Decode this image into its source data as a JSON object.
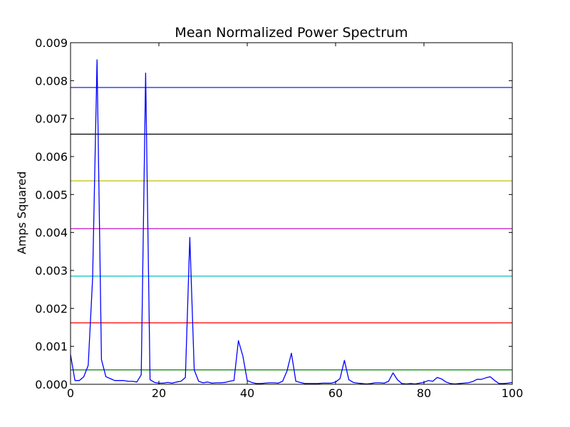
{
  "chart_data": {
    "type": "line",
    "title": "Mean Normalized Power Spectrum",
    "xlabel": "",
    "ylabel": "Amps Squared",
    "xlim": [
      0,
      100
    ],
    "ylim": [
      0,
      0.009
    ],
    "x_ticks": [
      0,
      20,
      40,
      60,
      80,
      100
    ],
    "x_tick_labels": [
      "0",
      "20",
      "40",
      "60",
      "80",
      "100"
    ],
    "y_ticks": [
      0,
      0.001,
      0.002,
      0.003,
      0.004,
      0.005,
      0.006,
      0.007,
      0.008,
      0.009
    ],
    "y_tick_labels": [
      "0.000",
      "0.001",
      "0.002",
      "0.003",
      "0.004",
      "0.005",
      "0.006",
      "0.007",
      "0.008",
      "0.009"
    ],
    "grid": false,
    "series": [
      {
        "color": "#0000ff",
        "x": [
          0,
          1,
          2,
          3,
          4,
          5,
          6,
          7,
          8,
          9,
          10,
          11,
          12,
          13,
          14,
          15,
          16,
          17,
          18,
          19,
          20,
          21,
          22,
          23,
          24,
          25,
          26,
          27,
          28,
          29,
          30,
          31,
          32,
          33,
          34,
          35,
          36,
          37,
          38,
          39,
          40,
          41,
          42,
          43,
          44,
          45,
          46,
          47,
          48,
          49,
          50,
          51,
          52,
          53,
          54,
          55,
          56,
          57,
          58,
          59,
          60,
          61,
          62,
          63,
          64,
          65,
          66,
          67,
          68,
          69,
          70,
          71,
          72,
          73,
          74,
          75,
          76,
          77,
          78,
          79,
          80,
          81,
          82,
          83,
          84,
          85,
          86,
          87,
          88,
          89,
          90,
          91,
          92,
          93,
          94,
          95,
          96,
          97,
          98,
          99,
          100
        ],
        "y": [
          0.00078,
          0.0001,
          0.0001,
          0.0002,
          0.0005,
          0.0028,
          0.00855,
          0.00065,
          0.0002,
          0.00015,
          0.0001,
          0.0001,
          0.0001,
          8e-05,
          8e-05,
          6e-05,
          0.00025,
          0.0082,
          0.00012,
          5e-05,
          3e-05,
          3e-05,
          5e-05,
          3e-05,
          6e-05,
          8e-05,
          0.00018,
          0.00387,
          0.00038,
          8e-05,
          4e-05,
          6e-05,
          3e-05,
          4e-05,
          4e-05,
          5e-05,
          8e-05,
          0.0001,
          0.00115,
          0.00075,
          0.0001,
          5e-05,
          2e-05,
          2e-05,
          3e-05,
          4e-05,
          4e-05,
          3e-05,
          8e-05,
          0.00035,
          0.00082,
          8e-05,
          5e-05,
          2e-05,
          2e-05,
          2e-05,
          2e-05,
          3e-05,
          3e-05,
          3e-05,
          6e-05,
          0.00015,
          0.00063,
          0.00012,
          5e-05,
          3e-05,
          2e-05,
          1e-05,
          2e-05,
          4e-05,
          4e-05,
          3e-05,
          8e-05,
          0.0003,
          0.00012,
          2e-05,
          1e-05,
          2e-05,
          1e-05,
          3e-05,
          5e-05,
          0.0001,
          8e-05,
          0.00018,
          0.00014,
          6e-05,
          2e-05,
          1e-05,
          2e-05,
          3e-05,
          4e-05,
          7e-05,
          0.00013,
          0.00013,
          0.00017,
          0.0002,
          0.0001,
          2e-05,
          2e-05,
          3e-05,
          5e-05
        ]
      }
    ],
    "horizontal_lines": [
      {
        "y": 0.00782,
        "color": "#0000ff"
      },
      {
        "y": 0.00659,
        "color": "#000000"
      },
      {
        "y": 0.00536,
        "color": "#bfbf00"
      },
      {
        "y": 0.0041,
        "color": "#bf00bf"
      },
      {
        "y": 0.00285,
        "color": "#00bfbf"
      },
      {
        "y": 0.00162,
        "color": "#ff0000"
      },
      {
        "y": 0.00038,
        "color": "#008000"
      }
    ]
  }
}
